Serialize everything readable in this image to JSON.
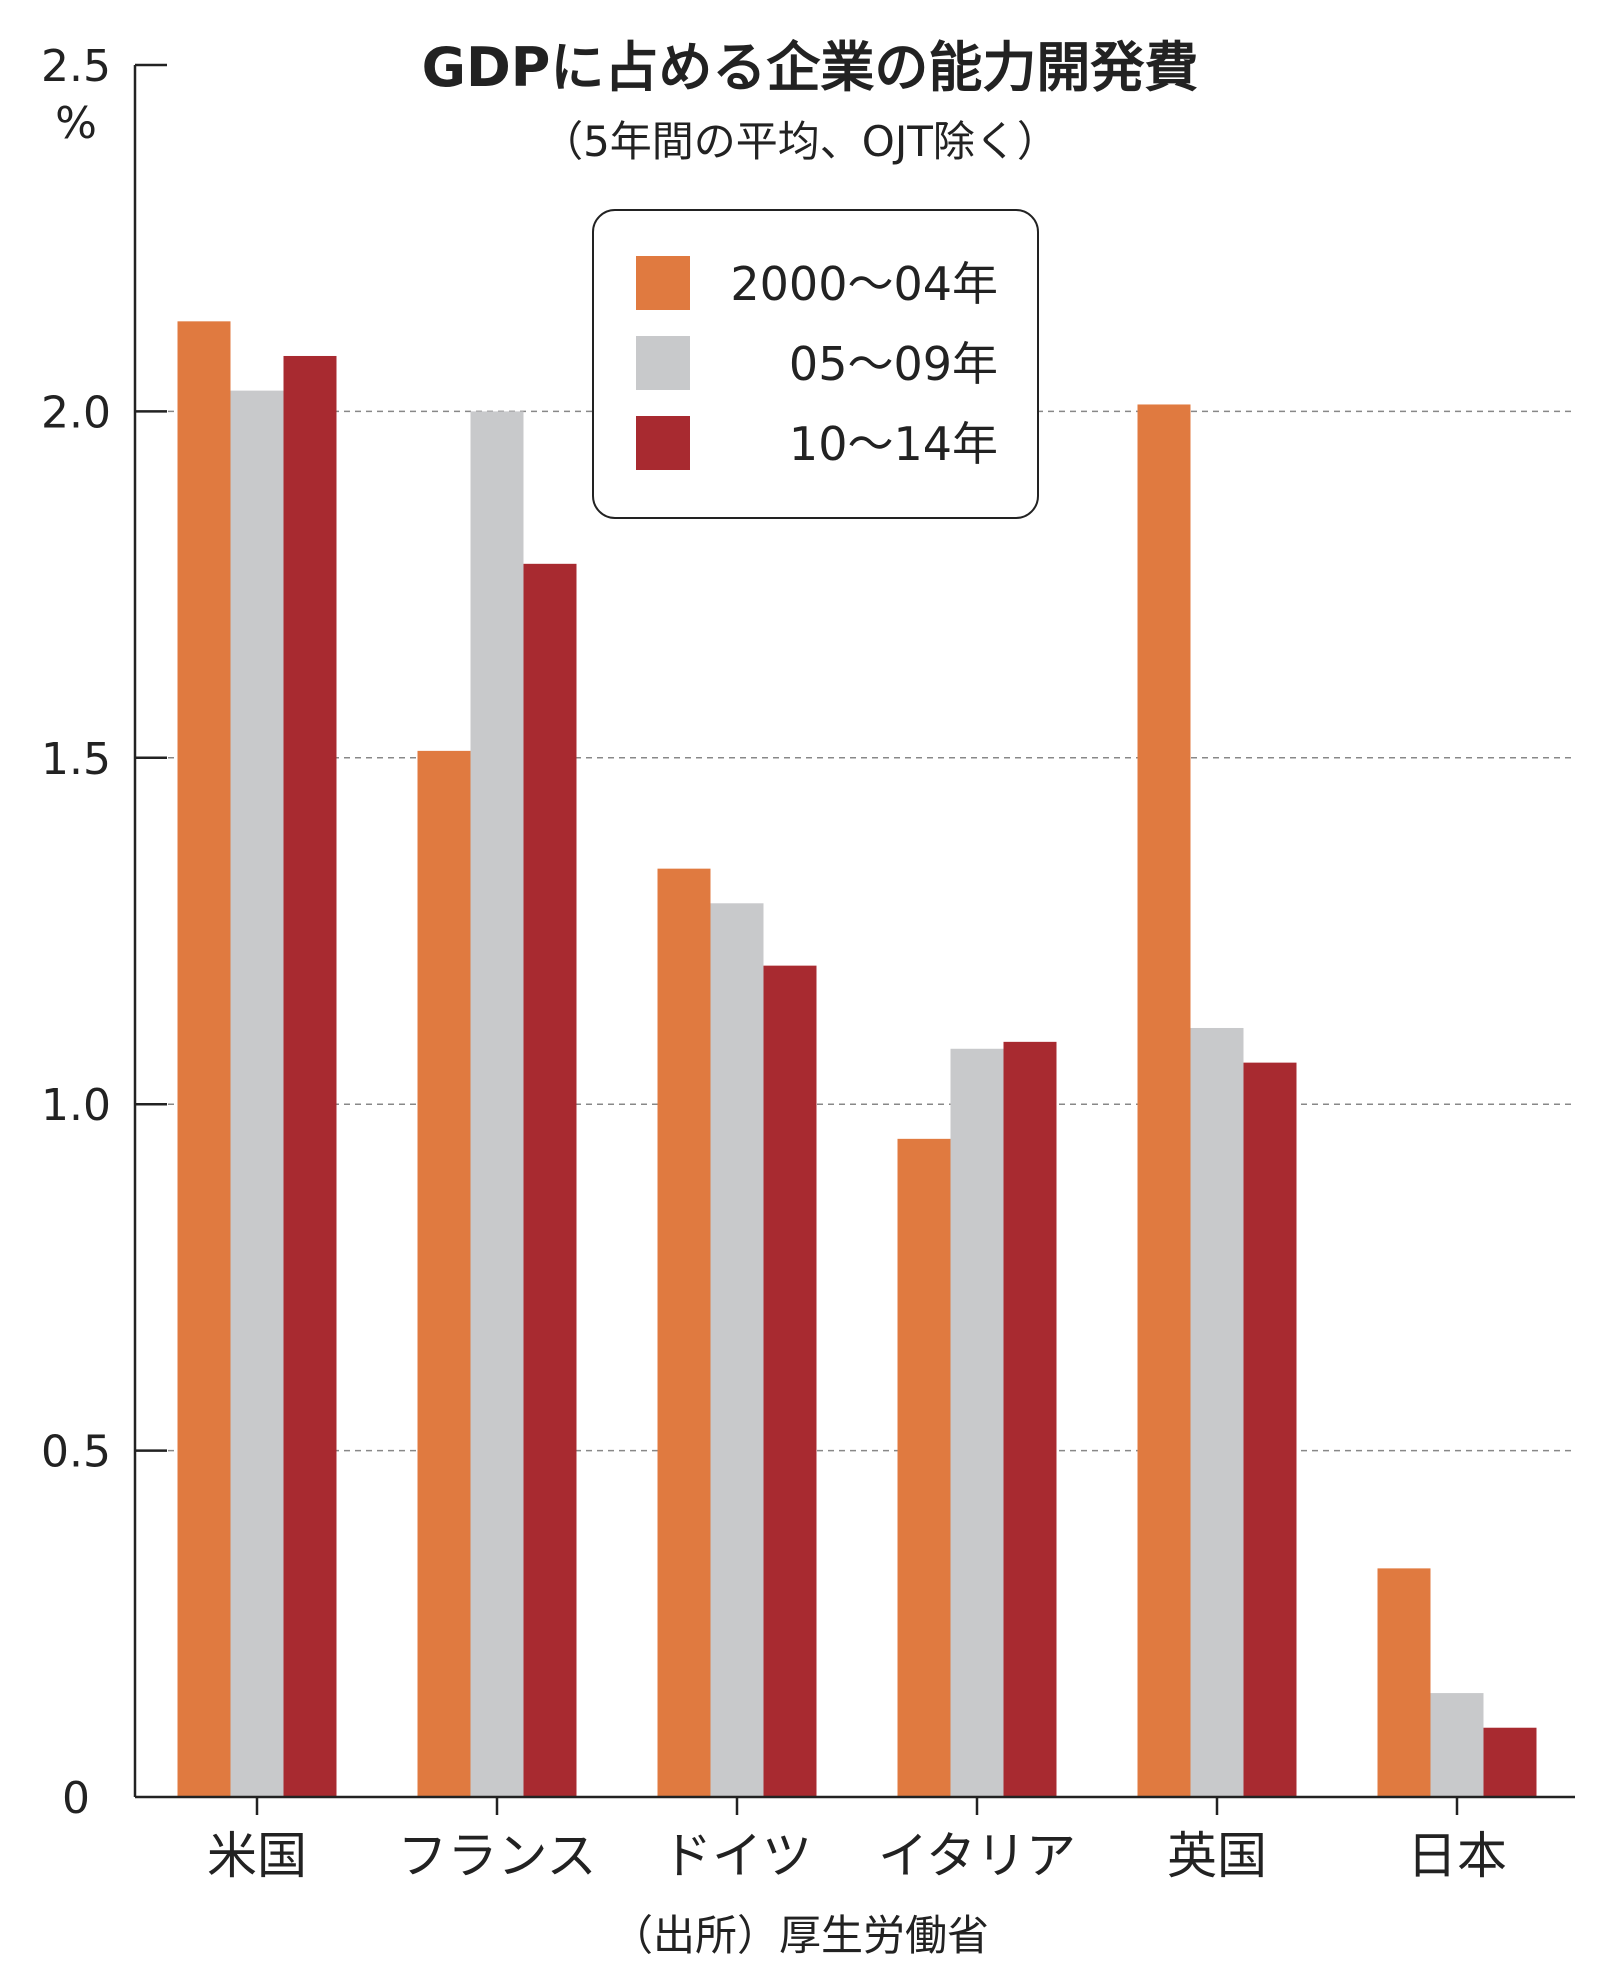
{
  "chart_data": {
    "type": "bar",
    "title": "GDPに占める企業の能力開発費",
    "subtitle": "（5年間の平均、OJT除く）",
    "unit": "%",
    "ylim": [
      0,
      2.5
    ],
    "yticks": [
      "0",
      "0.5",
      "1.0",
      "1.5",
      "2.0",
      "2.5"
    ],
    "categories": [
      "米国",
      "フランス",
      "ドイツ",
      "イタリア",
      "英国",
      "日本"
    ],
    "series": [
      {
        "name": "2000〜04年",
        "color": "#e07a40",
        "values": [
          2.13,
          1.51,
          1.34,
          0.95,
          2.01,
          0.33
        ]
      },
      {
        "name": "05〜09年",
        "color": "#c8c9cb",
        "values": [
          2.03,
          2.0,
          1.29,
          1.08,
          1.11,
          0.15
        ]
      },
      {
        "name": "10〜14年",
        "color": "#a82a30",
        "values": [
          2.08,
          1.78,
          1.2,
          1.09,
          1.06,
          0.1
        ]
      }
    ],
    "grid": "dashed-horizontal",
    "legend_position": "top-center",
    "source": "（出所）厚生労働省"
  }
}
